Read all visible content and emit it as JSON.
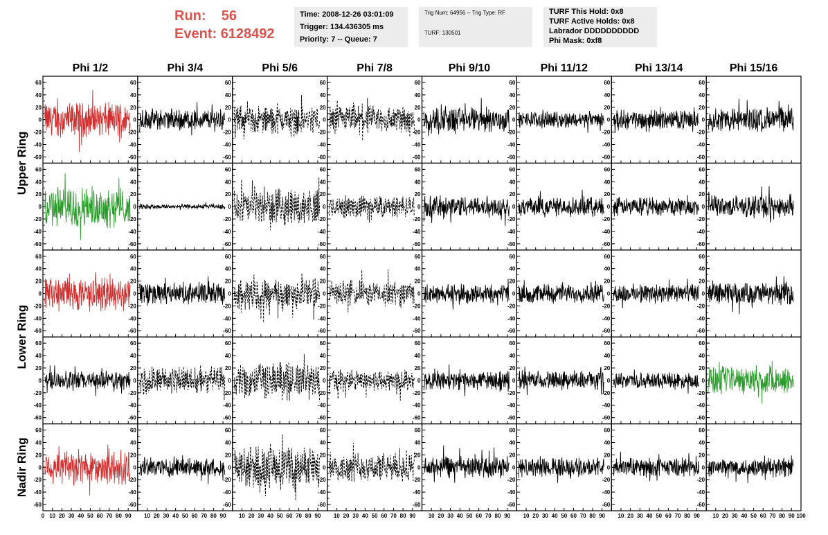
{
  "header": {
    "run_label": "Run:",
    "run_value": "56",
    "event_label": "Event:",
    "event_value": "6128492",
    "time": "Time: 2008-12-26 03:01:09",
    "trigger": "Trigger: 134.436305 ms",
    "priority": "Priority: 7 -- Queue: 7",
    "trig_num": "Trig Num: 64956 -- Trig Type: RF",
    "turf": "TURF: 130501",
    "turf_this_hold": "TURF This Hold: 0x8",
    "turf_active_holds": "TURF Active Holds: 0x8",
    "labrador": "Labrador DDDDDDDDDD",
    "phi_mask": "Phi Mask: 0xf8"
  },
  "colors": {
    "red": "#d03030",
    "green": "#2a9a2a",
    "black": "#000000"
  },
  "chart_data": {
    "type": "line",
    "columns": [
      "Phi 1/2",
      "Phi 3/4",
      "Phi 5/6",
      "Phi 7/8",
      "Phi 9/10",
      "Phi 11/12",
      "Phi 13/14",
      "Phi 15/16"
    ],
    "ring_labels": [
      "Upper Ring",
      "Lower Ring",
      "Nadir Ring"
    ],
    "xlim": [
      0,
      100
    ],
    "ylim": [
      -70,
      70
    ],
    "x_ticks": [
      0,
      10,
      20,
      30,
      40,
      50,
      60,
      70,
      80,
      90,
      100
    ],
    "x_tick_labels": [
      "0",
      "10",
      "20",
      "30",
      "40",
      "50",
      "60",
      "70",
      "80",
      "90",
      "100"
    ],
    "y_ticks": [
      -60,
      -40,
      -20,
      0,
      20,
      40,
      60
    ],
    "y_tick_labels": [
      "-60",
      "-40",
      "-20",
      "0",
      "20",
      "40",
      "60"
    ],
    "panel_styles": [
      [
        "red",
        "black",
        "dashed",
        "dashed",
        "black",
        "black",
        "black",
        "black"
      ],
      [
        "green",
        "black",
        "dashed",
        "dashed",
        "black",
        "black",
        "black",
        "black"
      ],
      [
        "red",
        "black",
        "dashed",
        "dashed",
        "black",
        "black",
        "black",
        "black"
      ],
      [
        "black",
        "dashed",
        "dashed",
        "dashed",
        "black",
        "black",
        "black",
        "green"
      ],
      [
        "red",
        "black",
        "dashed",
        "dashed",
        "black",
        "black",
        "black",
        "black"
      ]
    ],
    "panel_amplitudes": [
      [
        22,
        14,
        18,
        18,
        16,
        10,
        12,
        16
      ],
      [
        26,
        3,
        22,
        14,
        14,
        12,
        12,
        14
      ],
      [
        22,
        14,
        20,
        16,
        12,
        12,
        12,
        14
      ],
      [
        12,
        18,
        24,
        14,
        12,
        12,
        10,
        18
      ],
      [
        22,
        12,
        26,
        18,
        14,
        12,
        12,
        12
      ]
    ]
  }
}
